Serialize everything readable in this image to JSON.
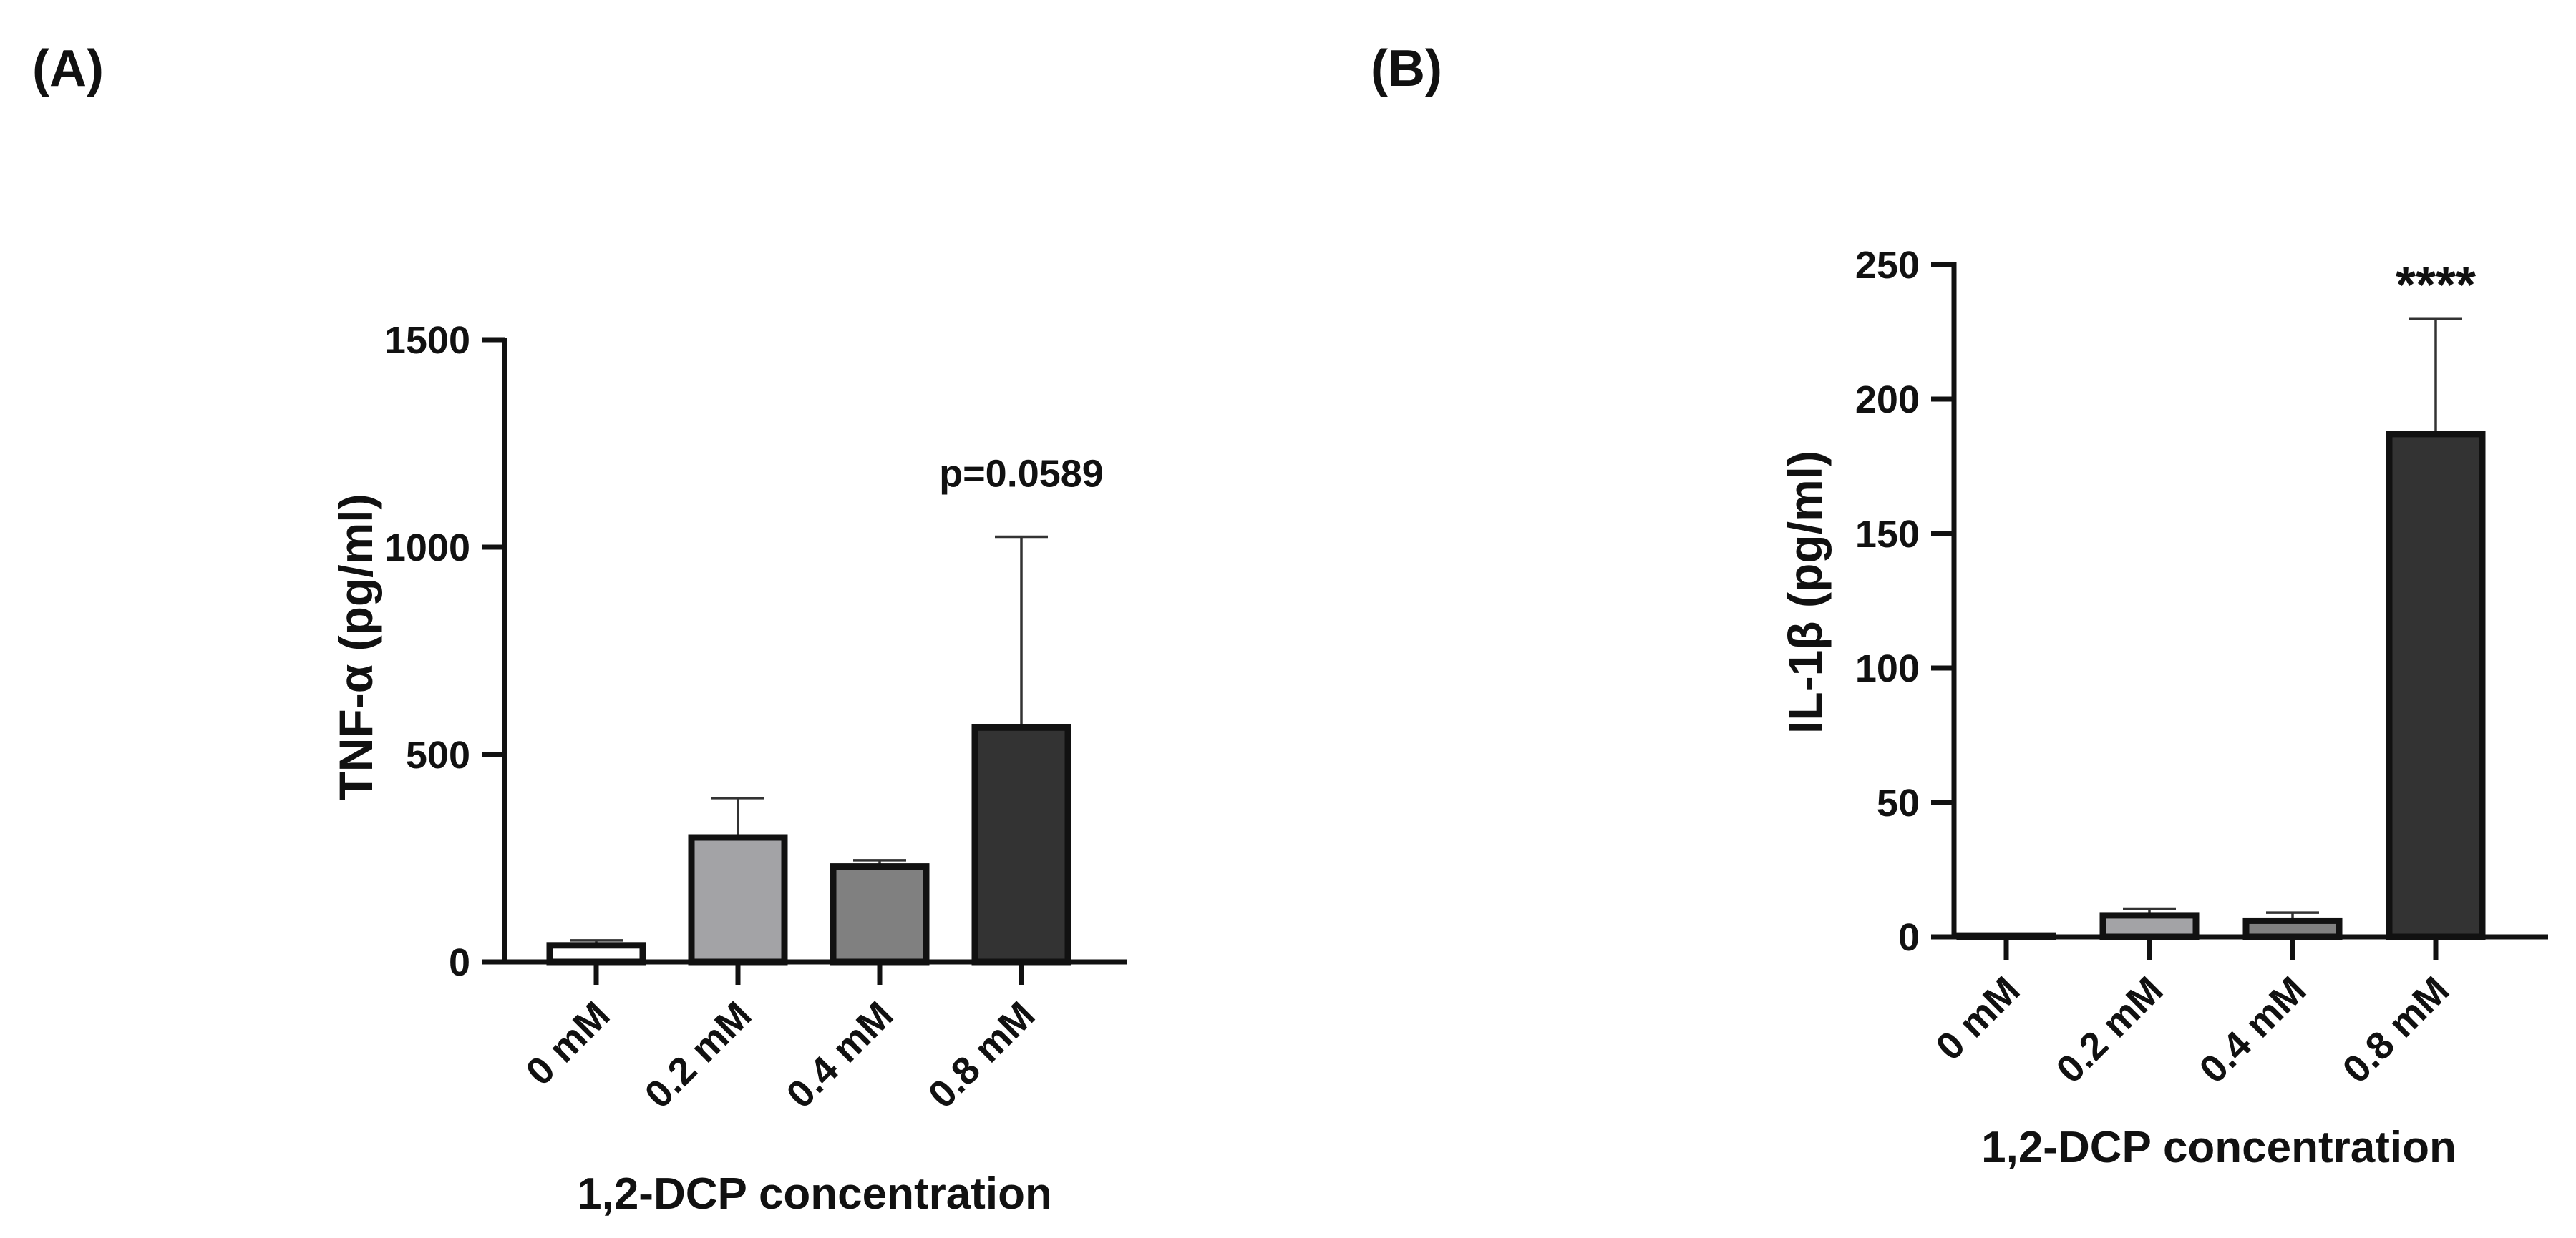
{
  "chart_data": [
    {
      "type": "bar",
      "panel_label": "(A)",
      "categories": [
        "0 mM",
        "0.2 mM",
        "0.4 mM",
        "0.8 mM"
      ],
      "values": [
        40,
        300,
        230,
        565
      ],
      "errors": [
        12,
        95,
        15,
        460
      ],
      "bar_colors": [
        "#ffffff",
        "#a3a3a6",
        "#808080",
        "#333333"
      ],
      "ylabel": "TNF-α (pg/ml)",
      "xlabel": "1,2-DCP concentration",
      "ylim": [
        0,
        1500
      ],
      "yticks": [
        0,
        500,
        1000,
        1500
      ],
      "annotations": [
        {
          "category": "0.8 mM",
          "text": "p=0.0589"
        }
      ],
      "grid": false,
      "legend": "none"
    },
    {
      "type": "bar",
      "panel_label": "(B)",
      "categories": [
        "0 mM",
        "0.2 mM",
        "0.4 mM",
        "0.8 mM"
      ],
      "values": [
        0.5,
        8,
        6,
        187
      ],
      "errors": [
        0.3,
        2.5,
        3,
        43
      ],
      "bar_colors": [
        "#ffffff",
        "#a3a3a6",
        "#808080",
        "#333333"
      ],
      "ylabel": "IL-1β (pg/ml)",
      "xlabel": "1,2-DCP concentration",
      "ylim": [
        0,
        250
      ],
      "yticks": [
        0,
        50,
        100,
        150,
        200,
        250
      ],
      "annotations": [
        {
          "category": "0.8 mM",
          "text": "****"
        }
      ],
      "grid": false,
      "legend": "none"
    }
  ]
}
